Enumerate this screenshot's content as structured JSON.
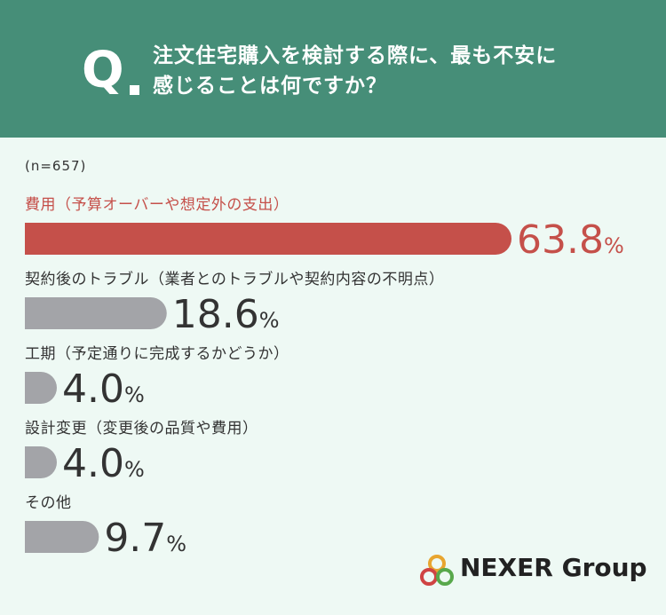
{
  "question": {
    "mark": "Q",
    "line1": "注文住宅購入を検討する際に、最も不安に",
    "line2": "感じることは何ですか？"
  },
  "sample_size": "(n=657)",
  "colors": {
    "header": "#468e78",
    "background": "#eef9f4",
    "highlight": "#c5504a",
    "bar_default": "#a3a4a8",
    "text": "#333333"
  },
  "chart_data": {
    "type": "bar",
    "orientation": "horizontal",
    "categories": [
      "費用（予算オーバーや想定外の支出）",
      "契約後のトラブル（業者とのトラブルや契約内容の不明点）",
      "工期（予定通りに完成するかどうか）",
      "設計変更（変更後の品質や費用）",
      "その他"
    ],
    "values": [
      63.8,
      18.6,
      4.0,
      4.0,
      9.7
    ],
    "value_labels": [
      "63.8",
      "18.6",
      "4.0",
      "4.0",
      "9.7"
    ],
    "unit": "%",
    "highlight_index": 0,
    "xlim": [
      0,
      63.8
    ]
  },
  "logo": {
    "name": "NEXER Group"
  }
}
